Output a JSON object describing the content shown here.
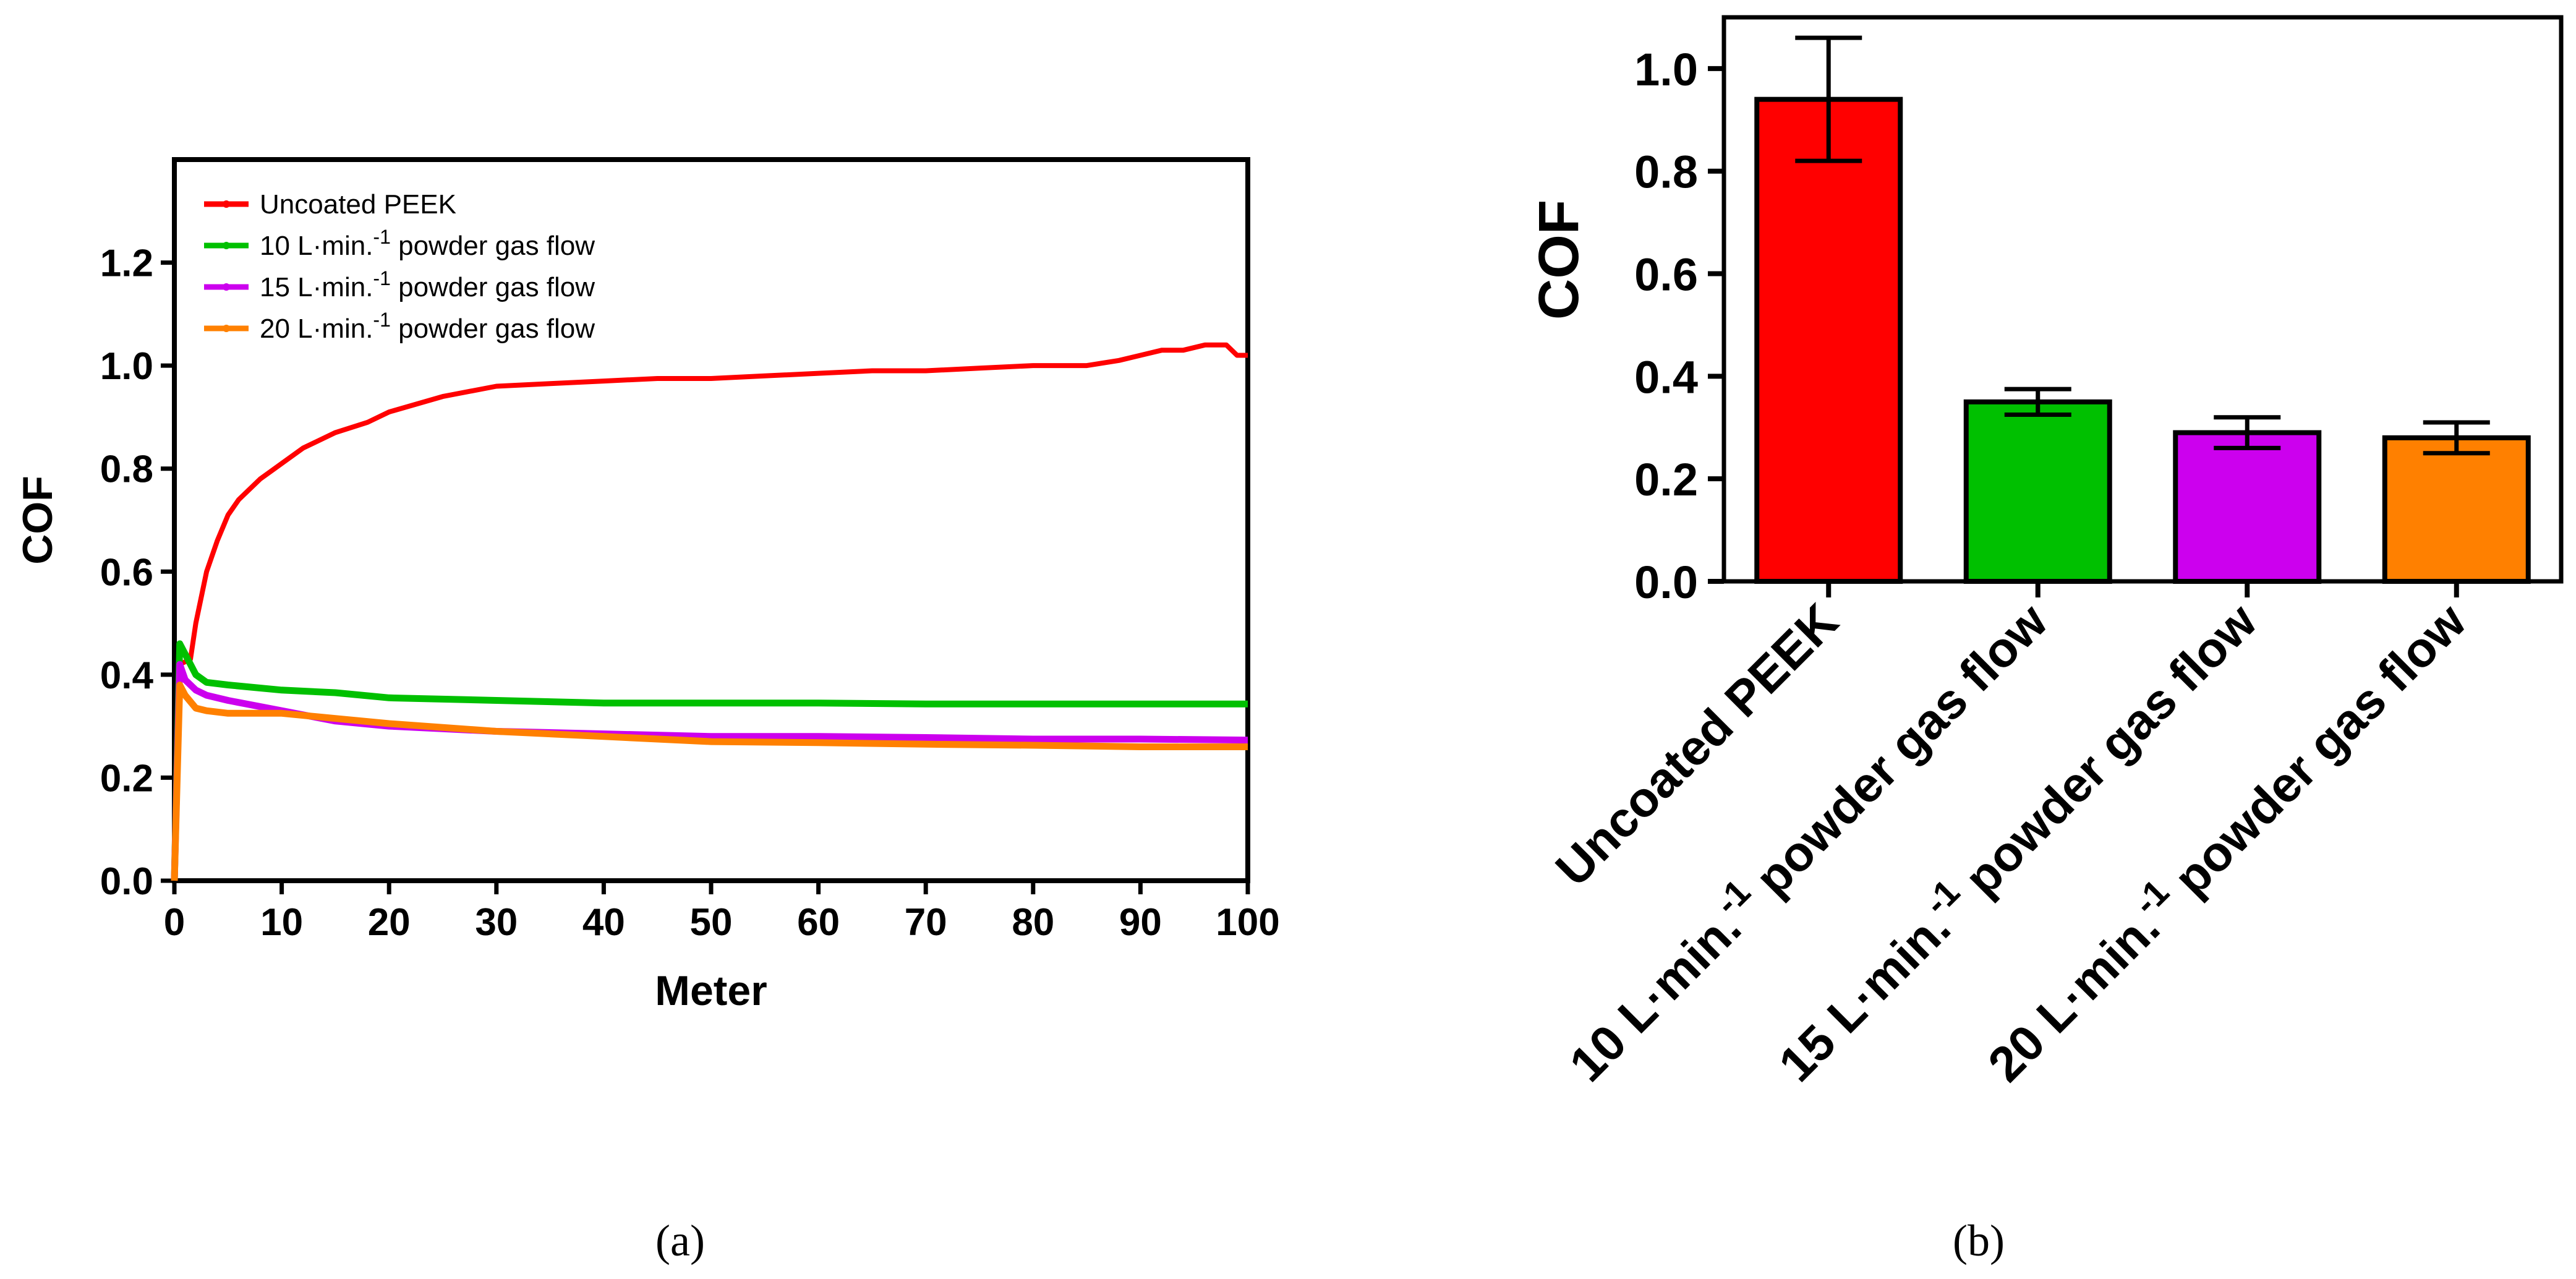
{
  "chart_data": [
    {
      "type": "line",
      "panel_caption": "(a)",
      "xlabel": "Meter",
      "ylabel": "COF",
      "xlim": [
        0,
        100
      ],
      "ylim": [
        0,
        1.4
      ],
      "xticks": [
        "0",
        "10",
        "20",
        "30",
        "40",
        "50",
        "60",
        "70",
        "80",
        "90",
        "100"
      ],
      "yticks": [
        "0.0",
        "0.2",
        "0.4",
        "0.6",
        "0.8",
        "1.0",
        "1.2"
      ],
      "legend_position": "top-left",
      "series": [
        {
          "name": "Uncoated PEEK",
          "color": "#ff0000",
          "x": [
            0,
            0.5,
            1.5,
            2,
            3,
            4,
            5,
            6,
            8,
            10,
            12,
            15,
            18,
            20,
            25,
            30,
            35,
            40,
            45,
            50,
            55,
            60,
            65,
            70,
            75,
            80,
            85,
            88,
            90,
            92,
            94,
            96,
            98,
            99,
            100
          ],
          "y": [
            0.0,
            0.42,
            0.43,
            0.5,
            0.6,
            0.66,
            0.71,
            0.74,
            0.78,
            0.81,
            0.84,
            0.87,
            0.89,
            0.91,
            0.94,
            0.96,
            0.965,
            0.97,
            0.975,
            0.975,
            0.98,
            0.985,
            0.99,
            0.99,
            0.995,
            1.0,
            1.0,
            1.01,
            1.02,
            1.03,
            1.03,
            1.04,
            1.04,
            1.02,
            1.02
          ]
        },
        {
          "name": "10 L·min.-1 powder gas flow",
          "color": "#00c000",
          "x": [
            0,
            0.5,
            1,
            2,
            3,
            5,
            10,
            15,
            20,
            30,
            40,
            50,
            60,
            70,
            80,
            90,
            100
          ],
          "y": [
            0.0,
            0.46,
            0.44,
            0.4,
            0.385,
            0.38,
            0.37,
            0.365,
            0.355,
            0.35,
            0.345,
            0.345,
            0.345,
            0.343,
            0.343,
            0.343,
            0.343
          ]
        },
        {
          "name": "15 L·min.-1 powder gas flow",
          "color": "#cc00ee",
          "x": [
            0,
            0.5,
            1,
            2,
            3,
            5,
            10,
            15,
            20,
            30,
            40,
            50,
            60,
            70,
            80,
            90,
            100
          ],
          "y": [
            0.0,
            0.42,
            0.39,
            0.37,
            0.36,
            0.35,
            0.33,
            0.31,
            0.3,
            0.29,
            0.285,
            0.28,
            0.28,
            0.278,
            0.275,
            0.275,
            0.273
          ]
        },
        {
          "name": "20 L·min.-1 powder gas flow",
          "color": "#ff8000",
          "x": [
            0,
            0.5,
            1,
            2,
            3,
            5,
            10,
            15,
            20,
            30,
            40,
            50,
            60,
            70,
            80,
            90,
            100
          ],
          "y": [
            0.0,
            0.38,
            0.36,
            0.335,
            0.33,
            0.325,
            0.325,
            0.315,
            0.305,
            0.29,
            0.28,
            0.27,
            0.268,
            0.265,
            0.263,
            0.26,
            0.26
          ]
        }
      ],
      "legend": [
        {
          "label": "Uncoated PEEK",
          "sup": "",
          "label_after": ""
        },
        {
          "label": "10 L·min.",
          "sup": "-1",
          "label_after": " powder gas flow"
        },
        {
          "label": "15 L·min.",
          "sup": "-1",
          "label_after": " powder gas flow"
        },
        {
          "label": "20 L·min.",
          "sup": "-1",
          "label_after": " powder gas flow"
        }
      ]
    },
    {
      "type": "bar",
      "panel_caption": "(b)",
      "ylabel": "COF",
      "ylim": [
        0,
        1.1
      ],
      "yticks": [
        "0.0",
        "0.2",
        "0.4",
        "0.6",
        "0.8",
        "1.0"
      ],
      "categories": [
        {
          "label": "Uncoated PEEK",
          "sup": "",
          "label_after": ""
        },
        {
          "label": "10 L·min.",
          "sup": "-1",
          "label_after": "  powder gas flow"
        },
        {
          "label": "15 L·min.",
          "sup": "-1",
          "label_after": "  powder gas flow"
        },
        {
          "label": "20 L·min.",
          "sup": "-1",
          "label_after": "  powder gas flow"
        }
      ],
      "values": [
        0.94,
        0.35,
        0.29,
        0.28
      ],
      "errors": [
        0.12,
        0.025,
        0.03,
        0.03
      ],
      "colors": [
        "#ff0000",
        "#00c000",
        "#cc00ee",
        "#ff8000"
      ]
    }
  ]
}
